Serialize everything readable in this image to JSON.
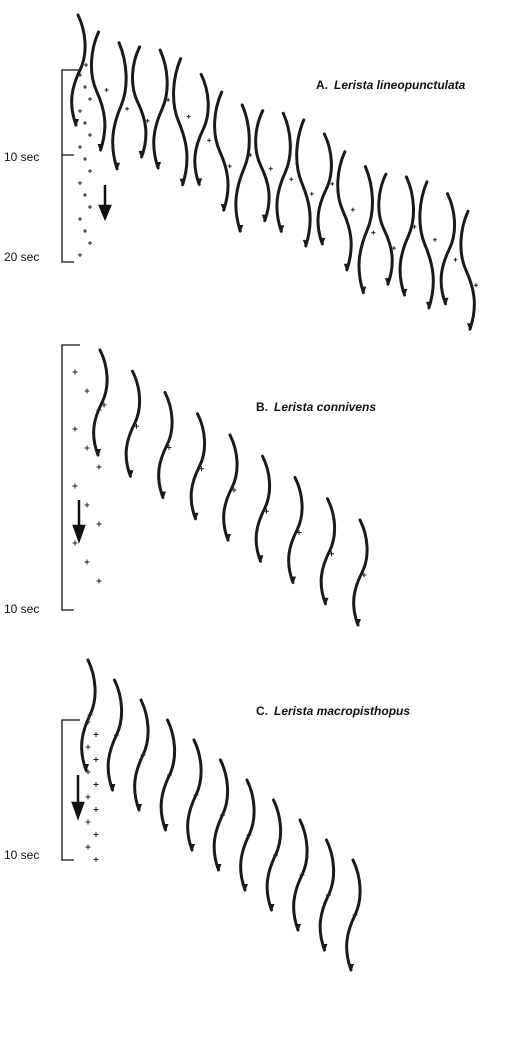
{
  "panels": [
    {
      "letter": "A.",
      "species": "Lerista lineopunctulata",
      "times": [
        "10 sec",
        "20 sec"
      ]
    },
    {
      "letter": "B.",
      "species": "Lerista connivens",
      "times": [
        "10 sec"
      ]
    },
    {
      "letter": "C.",
      "species": "Lerista macropisthopus",
      "times": [
        "10 sec"
      ]
    }
  ]
}
